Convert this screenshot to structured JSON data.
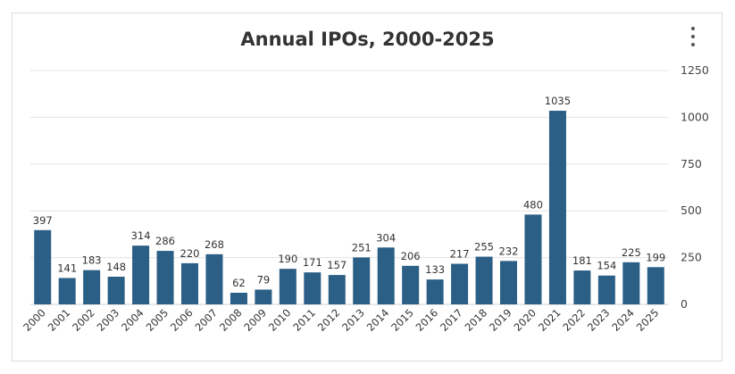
{
  "chart_data": {
    "type": "bar",
    "title": "Annual IPOs, 2000-2025",
    "xlabel": "",
    "ylabel": "",
    "categories": [
      "2000",
      "2001",
      "2002",
      "2003",
      "2004",
      "2005",
      "2006",
      "2007",
      "2008",
      "2009",
      "2010",
      "2011",
      "2012",
      "2013",
      "2014",
      "2015",
      "2016",
      "2017",
      "2018",
      "2019",
      "2020",
      "2021",
      "2022",
      "2023",
      "2024",
      "2025"
    ],
    "values": [
      397,
      141,
      183,
      148,
      314,
      286,
      220,
      268,
      62,
      79,
      190,
      171,
      157,
      251,
      304,
      206,
      133,
      217,
      255,
      232,
      480,
      1035,
      181,
      154,
      225,
      199
    ],
    "ylim": [
      0,
      1250
    ],
    "yticks": [
      0,
      250,
      500,
      750,
      1000,
      1250
    ],
    "y_axis_side": "right",
    "grid": true,
    "bar_color": "#2b5f86",
    "data_labels": true
  },
  "menu": {
    "icon": "kebab-menu-icon"
  }
}
